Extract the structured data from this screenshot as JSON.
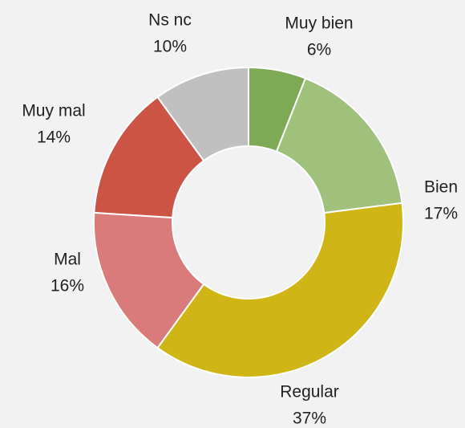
{
  "chart_data": {
    "type": "donut",
    "categories": [
      "Muy bien",
      "Bien",
      "Regular",
      "Mal",
      "Muy mal",
      "Ns nc"
    ],
    "values": [
      6,
      17,
      37,
      16,
      14,
      10
    ],
    "value_labels": [
      "6%",
      "17%",
      "37%",
      "16%",
      "14%",
      "10%"
    ],
    "colors": [
      "#7faa55",
      "#a0c17c",
      "#cfb515",
      "#d97b7a",
      "#cb5444",
      "#c0c0c0"
    ]
  }
}
